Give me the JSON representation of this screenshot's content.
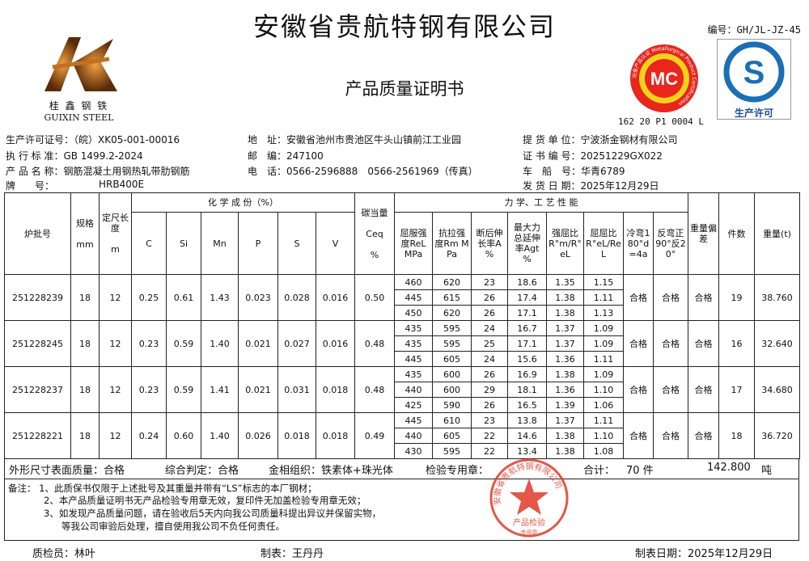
{
  "header": {
    "company": "安徽省贵航特钢有限公司",
    "doc_title": "产品质量证明书",
    "doc_no": "编号：GH/JL-JZ-45",
    "cert_code": "162 20 P1 0004 L",
    "logo_text": "桂 鑫 钢 铁",
    "logo_en": "GUIXIN STEEL",
    "mc_text": "MC",
    "mc_ring": "冶金产品认证 Metallurgical Product Certification",
    "qs_text": "生产许可",
    "brand_color": "#8a4a18"
  },
  "info": {
    "license": "生产许可证号：（皖）XK05-001-00016",
    "standard": "执 行 标 准：GB 1499.2-2024",
    "product": "产 品 名 称：钢筋混凝土用钢热轧带肋钢筋",
    "grade_label": "牌　　号：",
    "grade": "HRB400E",
    "address": "地　址：安徽省池州市贵池区牛头山镇前江工业园",
    "postcode": "邮　编：247100",
    "phone": "电　话：0566-2596888　0566-2561969（传真）",
    "customer": "提 货 单 位：宁波浙金钢材有限公司",
    "cert_no": "证 书 编 号：20251229GX022",
    "vehicle": "车　船　号：华青6789",
    "ship_date": "发 货 日 期：2025年12月29日"
  },
  "table": {
    "h_furnace": "炉批号",
    "h_spec": "规格",
    "h_spec_unit": "mm",
    "h_len": "定尺长度",
    "h_len_unit": "m",
    "h_chem": "化 学 成 份（%）",
    "chem_cols": [
      "C",
      "Si",
      "Mn",
      "P",
      "S",
      "V"
    ],
    "h_ceq": "碳当量",
    "h_ceq2": "Ceq",
    "h_ceq3": "%",
    "h_mech": "力 学、工 艺 性 能",
    "mech_cols": [
      "屈服强度ReL MPa",
      "抗拉强度Rm MPa",
      "断后伸长率A %",
      "最大力总延伸率Agt %",
      "强屈比R°m/R°eL",
      "屈屈比R°eL/ReL",
      "冷弯180°d=4a",
      "反弯正90°反20°"
    ],
    "h_dev": "重量偏差",
    "h_count": "件数",
    "h_weight": "重量(t)",
    "rows": [
      {
        "furnace": "251228239",
        "spec": "18",
        "len": "12",
        "chem": [
          "0.25",
          "0.61",
          "1.43",
          "0.023",
          "0.028",
          "0.016"
        ],
        "ceq": "0.50",
        "mech": [
          [
            "460",
            "620",
            "23",
            "18.6",
            "1.35",
            "1.15"
          ],
          [
            "445",
            "615",
            "26",
            "17.4",
            "1.38",
            "1.11"
          ],
          [
            "450",
            "620",
            "26",
            "17.1",
            "1.38",
            "1.13"
          ]
        ],
        "bend": "合格",
        "rebend": "合格",
        "dev": "合格",
        "count": "19",
        "weight": "38.760"
      },
      {
        "furnace": "251228245",
        "spec": "18",
        "len": "12",
        "chem": [
          "0.23",
          "0.59",
          "1.40",
          "0.021",
          "0.027",
          "0.016"
        ],
        "ceq": "0.48",
        "mech": [
          [
            "435",
            "595",
            "24",
            "16.7",
            "1.37",
            "1.09"
          ],
          [
            "435",
            "595",
            "25",
            "17.1",
            "1.37",
            "1.09"
          ],
          [
            "445",
            "605",
            "24",
            "15.6",
            "1.36",
            "1.11"
          ]
        ],
        "bend": "合格",
        "rebend": "合格",
        "dev": "合格",
        "count": "16",
        "weight": "32.640"
      },
      {
        "furnace": "251228237",
        "spec": "18",
        "len": "12",
        "chem": [
          "0.23",
          "0.59",
          "1.41",
          "0.021",
          "0.031",
          "0.018"
        ],
        "ceq": "0.48",
        "mech": [
          [
            "435",
            "600",
            "26",
            "16.9",
            "1.38",
            "1.09"
          ],
          [
            "440",
            "600",
            "29",
            "18.1",
            "1.36",
            "1.10"
          ],
          [
            "425",
            "590",
            "26",
            "16.5",
            "1.39",
            "1.06"
          ]
        ],
        "bend": "合格",
        "rebend": "合格",
        "dev": "合格",
        "count": "17",
        "weight": "34.680"
      },
      {
        "furnace": "251228221",
        "spec": "18",
        "len": "12",
        "chem": [
          "0.24",
          "0.60",
          "1.40",
          "0.026",
          "0.018",
          "0.018"
        ],
        "ceq": "0.49",
        "mech": [
          [
            "445",
            "610",
            "23",
            "13.8",
            "1.37",
            "1.11"
          ],
          [
            "440",
            "605",
            "22",
            "14.6",
            "1.38",
            "1.10"
          ],
          [
            "430",
            "595",
            "22",
            "13.4",
            "1.38",
            "1.08"
          ]
        ],
        "bend": "合格",
        "rebend": "合格",
        "dev": "合格",
        "count": "18",
        "weight": "36.720"
      }
    ]
  },
  "summary": {
    "appearance": "外形尺寸表面质量：合格",
    "judgement": "综合判定：合格",
    "structure": "金相组织：铁素体+珠光体",
    "stamp_label": "检验专用章：",
    "total_label": "合计：",
    "total_count": "70 件",
    "total_weight": "142.800",
    "weight_unit": "吨"
  },
  "notes": [
    "备注：  1、此质保书仅限于上述批号及其重量并带有“LS”标志的本厂钢材；",
    "2、本产品质量证明书无产品检验专用章无效，复印件无加盖检验专用章无效；",
    "3、如发现产品质量问题，请在验收后5天内向我公司质量科提出异议并保留实物，",
    "等我公司审验后处理，擅自使用我公司不负任何责任。"
  ],
  "stamp": {
    "ring": "安徽省贵航特钢有限公司",
    "center": "产品检验",
    "bottom": "专用章",
    "color": "#e03a2a"
  },
  "footer": {
    "inspector": "质检员：林叶",
    "maker": "制表：王丹丹",
    "date": "制表日期：2025年12月29日"
  }
}
